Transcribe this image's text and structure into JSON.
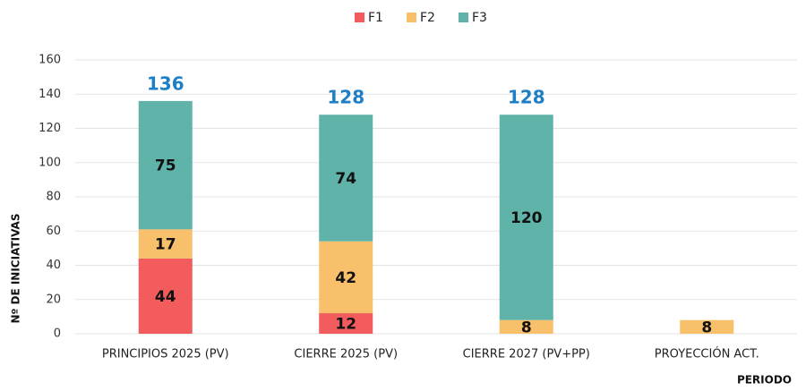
{
  "chart_data": {
    "type": "stacked_bar",
    "categories": [
      "PRINCIPIOS 2025 (PV)",
      "CIERRE 2025 (PV)",
      "CIERRE 2027 (PV+PP)",
      "PROYECCIÓN ACT."
    ],
    "series": [
      {
        "name": "F1",
        "color": "#f25c5c",
        "values": [
          44,
          12,
          null,
          null
        ]
      },
      {
        "name": "F2",
        "color": "#f8c06a",
        "values": [
          17,
          42,
          8,
          8
        ]
      },
      {
        "name": "F3",
        "color": "#5fb3a9",
        "values": [
          75,
          74,
          120,
          null
        ]
      }
    ],
    "totals": [
      136,
      128,
      128,
      null
    ],
    "ylim": [
      0,
      160
    ],
    "yticks": [
      0,
      20,
      40,
      60,
      80,
      100,
      120,
      140,
      160
    ],
    "y_label": "Nº DE INICIATIVAS",
    "x_label": "PERIODO",
    "grid": true
  }
}
